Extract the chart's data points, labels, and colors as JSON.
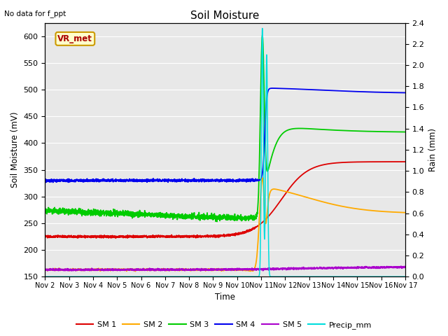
{
  "title": "Soil Moisture",
  "subtitle": "No data for f_ppt",
  "ylabel_left": "Soil Moisture (mV)",
  "ylabel_right": "Rain (mm)",
  "xlabel": "Time",
  "station_label": "VR_met",
  "ylim_left": [
    150,
    625
  ],
  "ylim_right": [
    0.0,
    2.4
  ],
  "xtick_labels": [
    "Nov 2",
    "Nov 3",
    "Nov 4",
    "Nov 5",
    "Nov 6",
    "Nov 7",
    "Nov 8",
    "Nov 9",
    "Nov 10",
    "Nov 11",
    "Nov 12",
    "Nov 13",
    "Nov 14",
    "Nov 15",
    "Nov 16",
    "Nov 17"
  ],
  "yticks_left": [
    150,
    200,
    250,
    300,
    350,
    400,
    450,
    500,
    550,
    600
  ],
  "yticks_right": [
    0.0,
    0.2,
    0.4,
    0.6,
    0.8,
    1.0,
    1.2,
    1.4,
    1.6,
    1.8,
    2.0,
    2.2,
    2.4
  ],
  "colors": {
    "SM1": "#dd0000",
    "SM2": "#ffaa00",
    "SM3": "#00cc00",
    "SM4": "#0000ee",
    "SM5": "#aa00cc",
    "Precip": "#00dddd",
    "bg": "#e8e8e8",
    "grid": "#ffffff"
  },
  "legend": [
    "SM 1",
    "SM 2",
    "SM 3",
    "SM 4",
    "SM 5",
    "Precip_mm"
  ]
}
